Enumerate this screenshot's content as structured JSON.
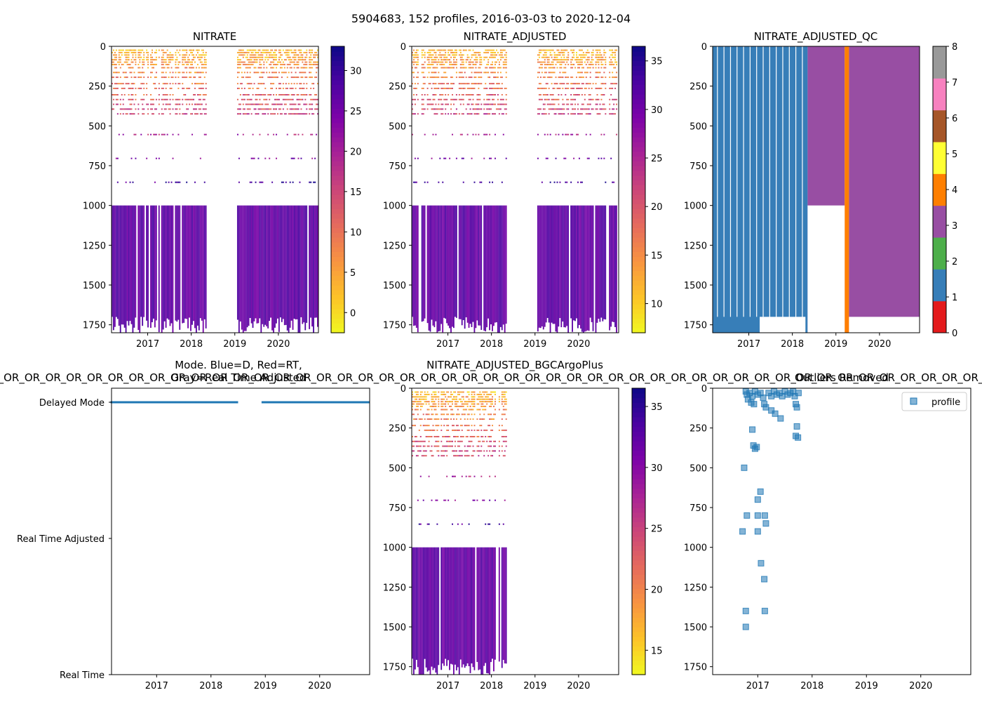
{
  "suptitle": "5904683, 152 profiles, 2016-03-03 to 2020-12-04",
  "x_tick_labels": [
    "2017",
    "2018",
    "2019",
    "2020"
  ],
  "chart_data": [
    {
      "id": "nitrate",
      "type": "heatmap",
      "title": "NITRATE",
      "ylim": [
        1800,
        0
      ],
      "yticks": [
        0,
        250,
        500,
        750,
        1000,
        1250,
        1500,
        1750
      ],
      "xlim": [
        2016.17,
        2020.92
      ],
      "xticks": [
        2017,
        2018,
        2019,
        2020
      ],
      "colormap": "plasma_r",
      "colorbar": {
        "range": [
          -2.5,
          33
        ],
        "ticks": [
          0,
          5,
          10,
          15,
          20,
          25,
          30
        ]
      },
      "gaps": [
        [
          2018.35,
          2019.05
        ]
      ]
    },
    {
      "id": "nitrate_adjusted",
      "type": "heatmap",
      "title": "NITRATE_ADJUSTED",
      "ylim": [
        1800,
        0
      ],
      "yticks": [
        0,
        250,
        500,
        750,
        1000,
        1250,
        1500,
        1750
      ],
      "xlim": [
        2016.17,
        2020.92
      ],
      "xticks": [
        2017,
        2018,
        2019,
        2020
      ],
      "colormap": "plasma_r",
      "colorbar": {
        "range": [
          7,
          36.5
        ],
        "ticks": [
          10,
          15,
          20,
          25,
          30,
          35
        ]
      },
      "gaps": [
        [
          2018.35,
          2019.05
        ]
      ]
    },
    {
      "id": "nitrate_adjusted_qc",
      "type": "heatmap",
      "title": "NITRATE_ADJUSTED_QC",
      "ylim": [
        1800,
        0
      ],
      "yticks": [
        0,
        250,
        500,
        750,
        1000,
        1250,
        1500,
        1750
      ],
      "xlim": [
        2016.17,
        2020.92
      ],
      "xticks": [
        2017,
        2018,
        2019,
        2020
      ],
      "colorbar": {
        "range": [
          0,
          8
        ],
        "ticks": [
          0,
          1,
          2,
          3,
          4,
          5,
          6,
          7,
          8
        ],
        "colors": [
          "#e41a1c",
          "#377eb8",
          "#4daf4a",
          "#984ea3",
          "#ff7f00",
          "#ffff33",
          "#a65628",
          "#f781bf",
          "#999999"
        ]
      },
      "segments": [
        {
          "x0": 2016.17,
          "x1": 2018.35,
          "qc": 1
        },
        {
          "x0": 2018.35,
          "x1": 2019.2,
          "qc": 3
        },
        {
          "x0": 2019.2,
          "x1": 2019.3,
          "qc": 4
        },
        {
          "x0": 2019.3,
          "x1": 2020.92,
          "qc": 3
        }
      ]
    },
    {
      "id": "mode",
      "type": "scatter",
      "title": "Mode. Blue=D, Red=RT,\nGray=Real Time Adjusted",
      "overlay_text": "_OR_OR_OR_OR_OR_OR_OR_OR_OR_OR_OR_OR_OR_OR_OR_OR_OR_OR_OR_OR_OR_OR_OR_OR_OR_OR_OR_OR_OR_OR_OR_OR_OR_OR_OR_OR_OR_OR_OR_OR_OR_OR_OR_OR_OR_OR_OR_OR_OR_OR_OR_OR_OR_OR_OR_OR_OR_OR_OR_OR_OR_OR_OR_OR_OR_",
      "categories": [
        "Delayed Mode",
        "Real Time Adjusted",
        "Real Time"
      ],
      "xlim": [
        2016.17,
        2020.92
      ],
      "xticks": [
        2017,
        2018,
        2019,
        2020
      ],
      "points_ranges": [
        [
          2016.17,
          2018.49,
          "Delayed Mode"
        ],
        [
          2018.95,
          2020.92,
          "Delayed Mode"
        ]
      ]
    },
    {
      "id": "bgcargoplus",
      "type": "heatmap",
      "title": "NITRATE_ADJUSTED_BGCArgoPlus",
      "ylim": [
        1800,
        0
      ],
      "yticks": [
        0,
        250,
        500,
        750,
        1000,
        1250,
        1500,
        1750
      ],
      "xlim": [
        2016.17,
        2020.92
      ],
      "xticks": [
        2017,
        2018,
        2019,
        2020
      ],
      "colormap": "plasma_r",
      "colorbar": {
        "range": [
          13,
          36.5
        ],
        "ticks": [
          15,
          20,
          25,
          30,
          35
        ]
      },
      "data_until": 2018.35
    },
    {
      "id": "outliers",
      "type": "scatter",
      "title": "Outliers Removed",
      "legend": [
        "profile"
      ],
      "ylim": [
        1800,
        0
      ],
      "yticks": [
        0,
        250,
        500,
        750,
        1000,
        1250,
        1500,
        1750
      ],
      "xlim": [
        2016.17,
        2020.92
      ],
      "xticks": [
        2017,
        2018,
        2019,
        2020
      ],
      "points": [
        [
          2016.78,
          20
        ],
        [
          2016.8,
          40
        ],
        [
          2016.82,
          70
        ],
        [
          2016.85,
          30
        ],
        [
          2016.88,
          90
        ],
        [
          2016.9,
          50
        ],
        [
          2016.93,
          100
        ],
        [
          2016.95,
          20
        ],
        [
          2017.0,
          40
        ],
        [
          2017.05,
          30
        ],
        [
          2017.1,
          60
        ],
        [
          2017.12,
          100
        ],
        [
          2017.15,
          120
        ],
        [
          2017.2,
          30
        ],
        [
          2017.25,
          50
        ],
        [
          2017.3,
          20
        ],
        [
          2017.35,
          40
        ],
        [
          2017.4,
          30
        ],
        [
          2017.45,
          50
        ],
        [
          2017.5,
          20
        ],
        [
          2017.55,
          40
        ],
        [
          2017.6,
          30
        ],
        [
          2017.65,
          20
        ],
        [
          2017.68,
          50
        ],
        [
          2017.7,
          100
        ],
        [
          2017.72,
          120
        ],
        [
          2017.75,
          30
        ],
        [
          2017.25,
          140
        ],
        [
          2017.32,
          160
        ],
        [
          2017.42,
          190
        ],
        [
          2017.72,
          240
        ],
        [
          2016.9,
          260
        ],
        [
          2017.7,
          300
        ],
        [
          2017.74,
          310
        ],
        [
          2016.92,
          360
        ],
        [
          2016.95,
          380
        ],
        [
          2016.98,
          370
        ],
        [
          2016.75,
          500
        ],
        [
          2017.05,
          650
        ],
        [
          2017.0,
          700
        ],
        [
          2016.8,
          800
        ],
        [
          2017.0,
          800
        ],
        [
          2017.13,
          800
        ],
        [
          2017.15,
          850
        ],
        [
          2016.72,
          900
        ],
        [
          2017.0,
          900
        ],
        [
          2017.06,
          1100
        ],
        [
          2017.12,
          1200
        ],
        [
          2016.78,
          1400
        ],
        [
          2017.13,
          1400
        ],
        [
          2016.78,
          1500
        ]
      ]
    }
  ]
}
